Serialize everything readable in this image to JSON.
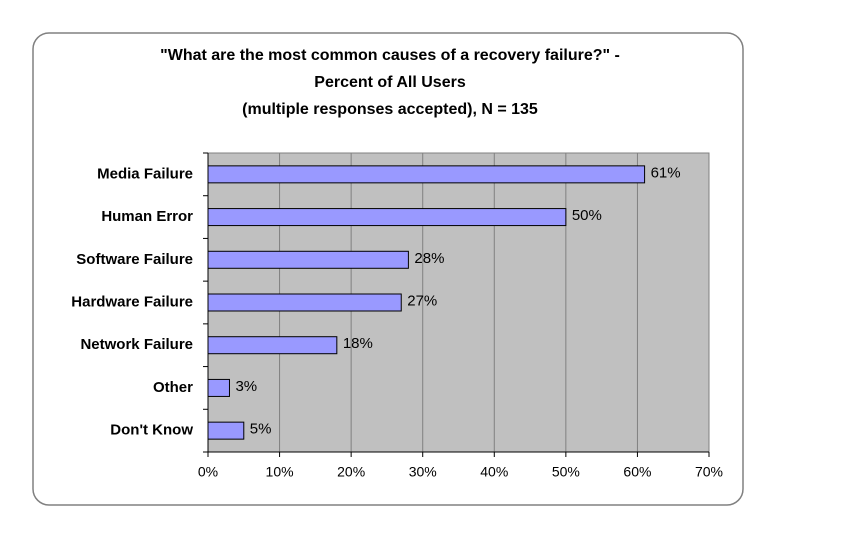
{
  "chart_data": {
    "type": "hbar",
    "title": [
      "\"What are the most common causes of a recovery failure?\" -",
      "Percent of All Users",
      "(multiple responses accepted), N  = 135"
    ],
    "categories": [
      "Media Failure",
      "Human Error",
      "Software Failure",
      "Hardware Failure",
      "Network Failure",
      "Other",
      "Don't Know"
    ],
    "values": [
      61,
      50,
      28,
      27,
      18,
      3,
      5
    ],
    "value_labels": [
      "61%",
      "50%",
      "28%",
      "27%",
      "18%",
      "3%",
      "5%"
    ],
    "color": "#9999ff",
    "xlim": [
      0,
      70
    ],
    "xticks": [
      {
        "value": 0,
        "label": "0%"
      },
      {
        "value": 10,
        "label": "10%"
      },
      {
        "value": 20,
        "label": "20%"
      },
      {
        "value": 30,
        "label": "30%"
      },
      {
        "value": 40,
        "label": "40%"
      },
      {
        "value": 50,
        "label": "50%"
      },
      {
        "value": 60,
        "label": "60%"
      },
      {
        "value": 70,
        "label": "70%"
      }
    ],
    "grid": true
  }
}
